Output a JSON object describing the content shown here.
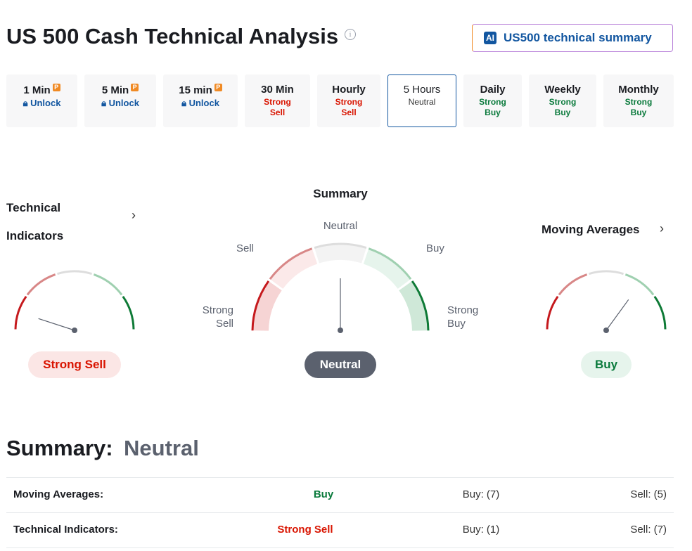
{
  "header": {
    "title": "US 500 Cash Technical Analysis",
    "ai_badge": "AI",
    "ai_button": "US500 technical summary"
  },
  "timeframes": [
    {
      "label": "1 Min",
      "status": "Unlock"
    },
    {
      "label": "5 Min",
      "status": "Unlock"
    },
    {
      "label": "15 min",
      "status": "Unlock"
    },
    {
      "label": "30 Min",
      "status": "Strong Sell"
    },
    {
      "label": "Hourly",
      "status": "Strong Sell"
    },
    {
      "label": "5 Hours",
      "status": "Neutral"
    },
    {
      "label": "Daily",
      "status": "Strong Buy"
    },
    {
      "label": "Weekly",
      "status": "Strong Buy"
    },
    {
      "label": "Monthly",
      "status": "Strong Buy"
    }
  ],
  "gauges": {
    "technical_indicators": {
      "title": "Technical Indicators",
      "result": "Strong Sell"
    },
    "summary": {
      "title": "Summary",
      "result": "Neutral",
      "labels": {
        "strong_sell": "Strong Sell",
        "sell": "Sell",
        "neutral": "Neutral",
        "buy": "Buy",
        "strong_buy": "Strong Buy"
      }
    },
    "moving_averages": {
      "title": "Moving Averages",
      "result": "Buy"
    }
  },
  "summary": {
    "label": "Summary:",
    "result": "Neutral"
  },
  "table": {
    "rows": [
      [
        "Moving Averages:",
        "Buy",
        "Buy: (7)",
        "Sell: (5)"
      ],
      [
        "Technical Indicators:",
        "Strong Sell",
        "Buy: (1)",
        "Sell: (7)"
      ]
    ]
  }
}
